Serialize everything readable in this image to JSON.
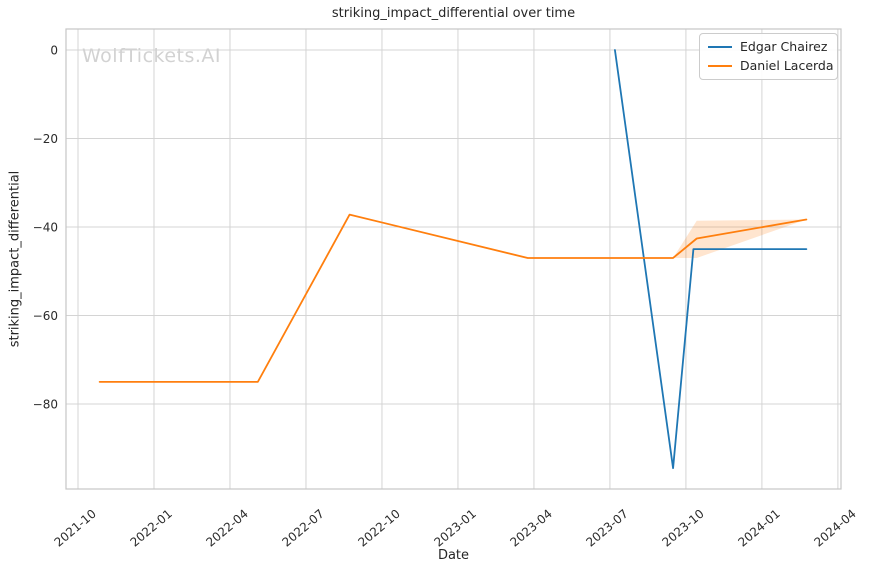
{
  "watermark": "WolfTickets.AI",
  "chart_data": {
    "type": "line",
    "title": "striking_impact_differential over time",
    "xlabel": "Date",
    "ylabel": "striking_impact_differential",
    "grid": true,
    "legend_position": "upper right",
    "x_tick_labels": [
      "2021-10",
      "2022-01",
      "2022-04",
      "2022-07",
      "2022-10",
      "2023-01",
      "2023-04",
      "2023-07",
      "2023-10",
      "2024-01",
      "2024-04"
    ],
    "x_tick_rotation_deg": 40,
    "y_ticks": [
      0,
      -20,
      -40,
      -60,
      -80
    ],
    "y_tick_labels": [
      "0",
      "−20",
      "−40",
      "−60",
      "−80"
    ],
    "ylim": [
      -99,
      4.7
    ],
    "xlim": [
      "2021-09-19",
      "2024-04-04"
    ],
    "series": [
      {
        "name": "Edgar Chairez",
        "color": "#1f77b4",
        "points": [
          [
            "2023-07-07",
            0
          ],
          [
            "2023-09-16",
            -94.5
          ],
          [
            "2023-10-10",
            -45
          ],
          [
            "2024-02-24",
            -45
          ]
        ]
      },
      {
        "name": "Daniel Lacerda",
        "color": "#ff7f0e",
        "points": [
          [
            "2021-10-27",
            -75
          ],
          [
            "2022-05-04",
            -75
          ],
          [
            "2022-08-23",
            -37.2
          ],
          [
            "2023-03-24",
            -47
          ],
          [
            "2023-09-16",
            -47
          ],
          [
            "2023-10-14",
            -42.6
          ],
          [
            "2024-02-24",
            -38.3
          ]
        ]
      }
    ],
    "band": {
      "series": "Daniel Lacerda",
      "color": "#ff7f0e",
      "opacity": 0.2,
      "points": [
        {
          "x": "2023-09-16",
          "upper": -47,
          "lower": -47
        },
        {
          "x": "2023-10-14",
          "upper": -38.6,
          "lower": -47
        },
        {
          "x": "2024-02-24",
          "upper": -38.3,
          "lower": -38.3
        }
      ]
    },
    "colors": {
      "grid": "#d4d4d4",
      "spine": "#c6c6c6",
      "text": "#262626",
      "tick_text": "#2b2b2b"
    }
  }
}
